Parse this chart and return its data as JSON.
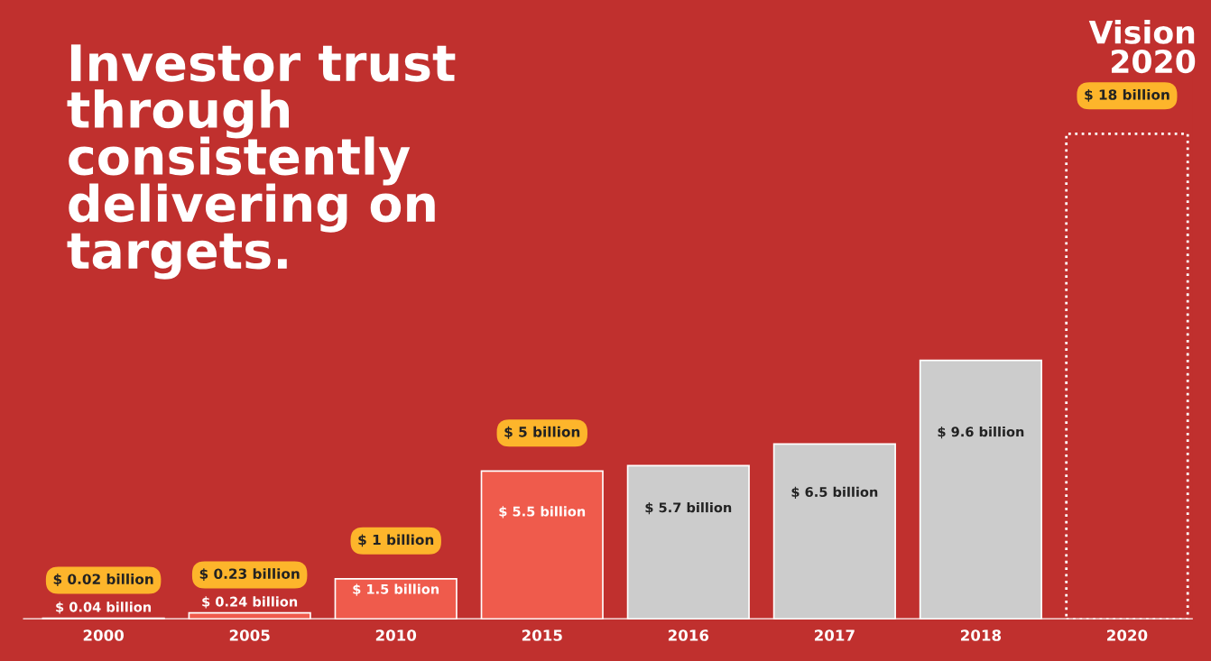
{
  "chart_data": {
    "type": "bar",
    "title": "Investor trust\nthrough\nconsistently\ndelivering on\ntargets.",
    "categories": [
      "2000",
      "2005",
      "2010",
      "2015",
      "2016",
      "2017",
      "2018",
      "2020"
    ],
    "series": [
      {
        "values": [
          0.04,
          0.24,
          1.5,
          5.5,
          5.7,
          6.5,
          9.6,
          null
        ],
        "colors": [
          "#ef5b4c",
          "#ef5b4c",
          "#ef5b4c",
          "#ef5b4c",
          "#cccccc",
          "#cccccc",
          "#cccccc",
          null
        ],
        "value_labels": [
          "$ 0.04 billion",
          "$ 0.24 billion",
          "$ 1.5 billion",
          "$ 5.5 billion",
          "$ 5.7 billion",
          "$ 6.5 billion",
          "$ 9.6 billion",
          null
        ]
      },
      {
        "values": [
          null,
          null,
          null,
          null,
          null,
          null,
          null,
          18
        ],
        "color": "#c0302e",
        "line_style": "dotted"
      }
    ],
    "annotations": [
      {
        "text": "$ 0.02 billion",
        "x": "2000",
        "y": 0.04
      },
      {
        "text": "$ 0.23 billion",
        "x": "2005",
        "y": 0.24
      },
      {
        "text": "$ 1 billion",
        "x": "2010",
        "y": 1.5
      },
      {
        "text": "$ 5 billion",
        "x": "2015",
        "y": 5.5
      },
      {
        "text": "$ 18 billion",
        "x": "2020",
        "y": 18
      },
      "Vision\n2020"
    ],
    "grid": false,
    "legend": false
  }
}
